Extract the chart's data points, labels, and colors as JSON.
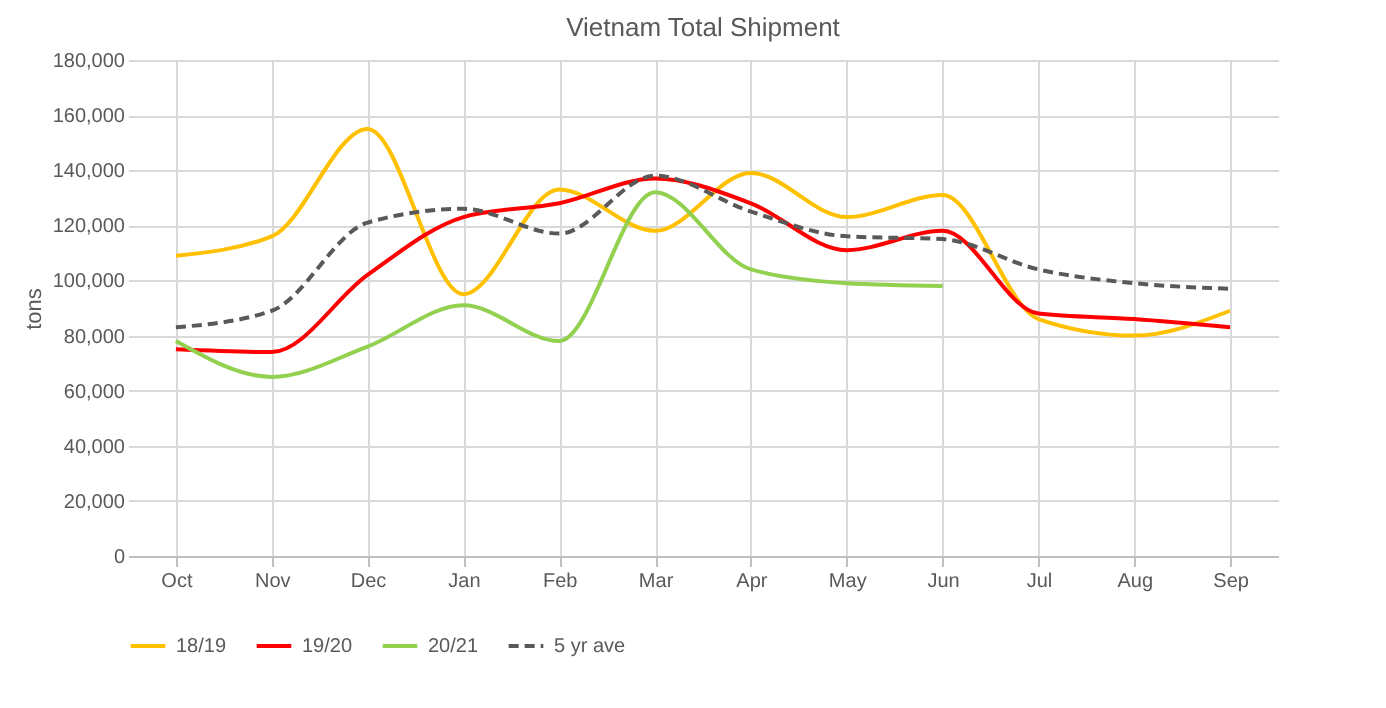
{
  "chart_data": {
    "type": "line",
    "title": "Vietnam Total Shipment",
    "ylabel": "tons",
    "categories": [
      "Oct",
      "Nov",
      "Dec",
      "Jan",
      "Feb",
      "Mar",
      "Apr",
      "May",
      "Jun",
      "Jul",
      "Aug",
      "Sep"
    ],
    "series": [
      {
        "name": "18/19",
        "color": "#ffc000",
        "values": [
          109000,
          116000,
          155000,
          95000,
          133000,
          118000,
          139000,
          123000,
          131000,
          86000,
          80000,
          89000
        ]
      },
      {
        "name": "19/20",
        "color": "#ff0000",
        "values": [
          75000,
          74000,
          102000,
          123000,
          128000,
          137000,
          128000,
          111000,
          118000,
          88000,
          86000,
          83000
        ]
      },
      {
        "name": "20/21",
        "color": "#92d050",
        "values": [
          78000,
          65000,
          76000,
          91000,
          78000,
          132000,
          104000,
          99000,
          98000,
          null,
          null,
          null
        ]
      },
      {
        "name": "5 yr ave",
        "color": "#595959",
        "line_style": "dashed",
        "values": [
          83000,
          89000,
          121000,
          126000,
          117000,
          138000,
          125000,
          116000,
          115000,
          104000,
          99000,
          97000
        ]
      }
    ],
    "ylim": [
      0,
      180000
    ],
    "yticks": [
      0,
      {
        "value": 20000,
        "label": "20,000"
      },
      {
        "value": 40000,
        "label": "40,000"
      },
      {
        "value": 60000,
        "label": "60,000"
      },
      {
        "value": 80000,
        "label": "80,000"
      },
      {
        "value": 100000,
        "label": "100,000"
      },
      {
        "value": 120000,
        "label": "120,000"
      },
      {
        "value": 140000,
        "label": "140,000"
      },
      {
        "value": 160000,
        "label": "160,000"
      },
      {
        "value": 180000,
        "label": "180,000"
      }
    ],
    "grid": true,
    "legend": "bottom",
    "marker": "none",
    "line_style": "solid"
  }
}
